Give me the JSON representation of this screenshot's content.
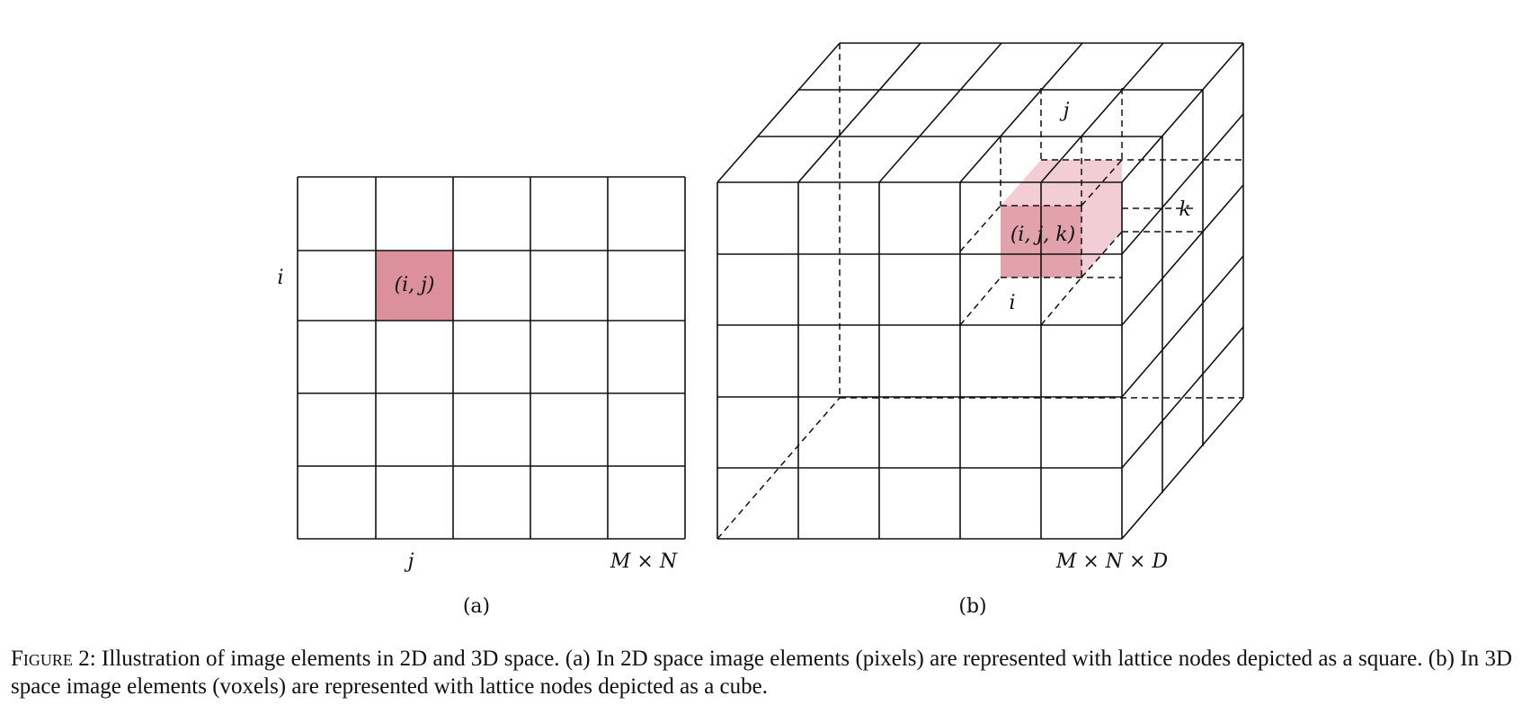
{
  "panel_a": {
    "label": "(a)",
    "row_label": "i",
    "col_label": "j",
    "size_label": "M × N",
    "cell_label": "(i, j)",
    "cell_color": "#db909b"
  },
  "panel_b": {
    "label": "(b)",
    "i_label": "i",
    "j_label": "j",
    "k_label": "k",
    "size_label": "M × N × D",
    "cell_label": "(i, j, k)",
    "front_color": "#e2a2ac",
    "top_color": "#f2cdd3"
  },
  "caption": {
    "figure_label": "Figure 2",
    "text": ": Illustration of image elements in 2D and 3D space. (a) In 2D space image elements (pixels) are represented with lattice nodes depicted as a square. (b) In 3D space image elements (voxels) are represented with lattice nodes depicted as a cube."
  }
}
